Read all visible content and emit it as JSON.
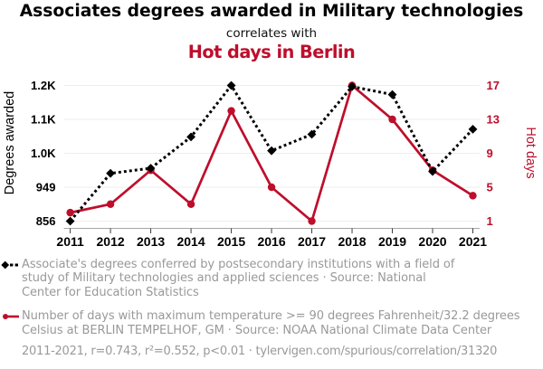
{
  "title": "Associates degrees awarded in Military technologies",
  "connector": "correlates with",
  "title2": "Hot days in Berlin",
  "colors": {
    "series_black": "#000000",
    "series_red": "#be0e2b",
    "legend_gray": "#999999",
    "gridline": "#ededed",
    "axis_line": "#a6a6a6",
    "tick": "#3a3a3a"
  },
  "chart_data": {
    "type": "line",
    "x": [
      2011,
      2012,
      2013,
      2014,
      2015,
      2016,
      2017,
      2018,
      2019,
      2020,
      2021
    ],
    "x_tick_labels": [
      "2011",
      "2012",
      "2013",
      "2014",
      "2015",
      "2016",
      "2017",
      "2018",
      "2019",
      "2020",
      "2021"
    ],
    "series": [
      {
        "name": "Associates degrees awarded in Military technologies",
        "axis": "left",
        "color": "#000000",
        "marker": "diamond",
        "line_style": "dashed",
        "values": [
          856,
          987,
          1001,
          1087,
          1228,
          1049,
          1094,
          1225,
          1203,
          992,
          1108
        ]
      },
      {
        "name": "Hot days in Berlin",
        "axis": "right",
        "color": "#be0e2b",
        "marker": "circle",
        "line_style": "solid",
        "values": [
          2,
          3,
          7,
          3,
          14,
          5,
          1,
          17,
          13,
          7,
          4
        ]
      }
    ],
    "left_axis": {
      "label": "Degrees awarded",
      "range": [
        856,
        1228
      ],
      "ticks": [
        856,
        949,
        1042,
        1135,
        1228
      ],
      "tick_labels": [
        "856",
        "949",
        "1.0K",
        "1.1K",
        "1.2K"
      ]
    },
    "right_axis": {
      "label": "Hot days",
      "range": [
        1,
        17
      ],
      "ticks": [
        1,
        5,
        9,
        13,
        17
      ],
      "tick_labels": [
        "1",
        "5",
        "9",
        "13",
        "17"
      ]
    },
    "grid": "horizontal",
    "legend_position": "bottom"
  },
  "legend": {
    "items": [
      {
        "series": "degrees",
        "lines": [
          "Associate's degrees conferred by postsecondary institutions with a field of",
          "study of Military technologies and applied sciences · Source: National",
          "Center for Education Statistics"
        ]
      },
      {
        "series": "hot-days",
        "lines": [
          "Number of days with maximum temperature >= 90 degrees Fahrenheit/32.2 degrees",
          "Celsius at BERLIN TEMPELHOF, GM · Source: NOAA National Climate Data Center"
        ]
      }
    ]
  },
  "footer": "2011-2021, r=0.743, r²=0.552, p<0.01 · tylervigen.com/spurious/correlation/31320"
}
